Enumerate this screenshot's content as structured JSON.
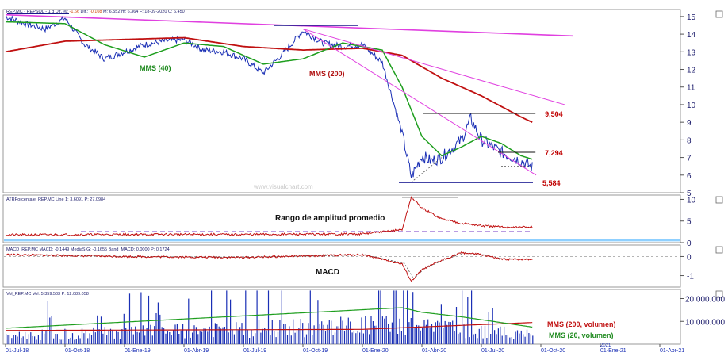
{
  "header": {
    "symbol": "REP.MC - REPSOL - 1 d",
    "diff_label": "Dif. %",
    "diff_value": "-1,66",
    "dif_label": "Dif.",
    "dif_value": "-0,108",
    "stats": "M: 6,552  m: 6,364  F: 18-09-2020  C: 6,450"
  },
  "indicator_headers": {
    "atr": "ATRPorcentaje_REP.MC  Line 1: 3,6091  P: 27,0984",
    "macd": "MACD_REP.MC  MACD: -0,1449  MediaSIG: -0,1655  Band_MACD: 0,0000  P: 0,1724",
    "vol": "Vol_REP.MC  Vol: 5.359.503  P: 12.089.058"
  },
  "annotations": {
    "mms40": "MMS (40)",
    "mms200": "MMS (200)",
    "rango": "Rango de amplitud promedio",
    "macd": "MACD",
    "vol200": "MMS (200, volumen)",
    "vol20": "MMS (20, volumen)",
    "watermark": "www.visualchart.com"
  },
  "levels": [
    {
      "value": 9.504,
      "label": "9,504",
      "color": "#c00000"
    },
    {
      "value": 7.294,
      "label": "7,294",
      "color": "#c00000"
    },
    {
      "value": 5.584,
      "label": "5,584",
      "color": "#c00000"
    }
  ],
  "colors": {
    "price": "#1a2fb5",
    "mms40": "#1e9e1e",
    "mms200": "#c01010",
    "trend": "#e040e0",
    "level_line": "#1a1a8c",
    "atr_band": "#8fd0ff"
  },
  "chart_data": [
    {
      "type": "line",
      "panel": "price",
      "x_ticks": [
        "01-Jul-18",
        "01-Oct-18",
        "01-Ene-19",
        "01-Abr-19",
        "01-Jul-19",
        "01-Oct-19",
        "01-Ene-20",
        "01-Abr-20",
        "01-Jul-20",
        "01-Oct-20",
        "01-Ene-21",
        "01-Abr-21"
      ],
      "y_ticks": [
        5,
        6,
        7,
        8,
        9,
        10,
        11,
        12,
        13,
        14,
        15
      ],
      "ylim": [
        5,
        15.4
      ],
      "series": [
        {
          "name": "REP.MC",
          "x": [
            "01-Jul-18",
            "01-Ago-18",
            "01-Sep-18",
            "01-Oct-18",
            "01-Nov-18",
            "01-Dic-18",
            "01-Ene-19",
            "01-Feb-19",
            "01-Mar-19",
            "01-Abr-19",
            "01-May-19",
            "01-Jun-19",
            "01-Jul-19",
            "01-Ago-19",
            "01-Sep-19",
            "01-Oct-19",
            "01-Nov-19",
            "01-Dic-19",
            "01-Ene-20",
            "01-Feb-20",
            "01-Mar-20",
            "15-Mar-20",
            "01-Abr-20",
            "15-Abr-20",
            "01-May-20",
            "01-Jun-20",
            "15-Jun-20",
            "01-Jul-20",
            "01-Ago-20",
            "01-Sep-20",
            "18-Sep-20"
          ],
          "values": [
            15.0,
            14.6,
            14.3,
            14.9,
            13.4,
            12.6,
            13.0,
            13.4,
            13.6,
            13.7,
            13.1,
            13.0,
            12.6,
            11.8,
            12.9,
            14.2,
            13.5,
            13.3,
            13.4,
            12.4,
            8.4,
            5.9,
            7.1,
            6.8,
            7.0,
            8.0,
            9.2,
            8.0,
            7.3,
            6.8,
            6.45
          ]
        },
        {
          "name": "MMS (40)",
          "x": [
            "01-Jul-18",
            "01-Oct-18",
            "01-Dic-18",
            "01-Feb-19",
            "01-Abr-19",
            "01-Jun-19",
            "01-Ago-19",
            "01-Oct-19",
            "01-Dic-19",
            "01-Feb-20",
            "01-Mar-20",
            "01-Abr-20",
            "01-May-20",
            "01-Jun-20",
            "01-Jul-20",
            "01-Ago-20",
            "01-Sep-20",
            "18-Sep-20"
          ],
          "values": [
            14.7,
            14.6,
            13.4,
            12.7,
            13.5,
            13.3,
            12.3,
            12.6,
            13.5,
            13.1,
            11.0,
            8.2,
            7.1,
            7.6,
            8.2,
            7.8,
            7.1,
            6.9
          ]
        },
        {
          "name": "MMS (200)",
          "x": [
            "01-Jul-18",
            "01-Oct-18",
            "01-Ene-19",
            "01-Abr-19",
            "01-Jul-19",
            "01-Oct-19",
            "01-Ene-20",
            "01-Mar-20",
            "01-May-20",
            "01-Jul-20",
            "01-Sep-20",
            "18-Sep-20"
          ],
          "values": [
            13.0,
            13.6,
            13.7,
            13.8,
            13.3,
            13.1,
            13.2,
            12.8,
            11.5,
            10.5,
            9.3,
            9.0
          ]
        }
      ],
      "levels": [
        9.504,
        7.294,
        5.584
      ]
    },
    {
      "type": "line",
      "panel": "atr",
      "title": "Rango de amplitud promedio",
      "y_ticks": [
        0,
        5,
        10
      ],
      "ylim": [
        0,
        11
      ],
      "series": [
        {
          "name": "ATRPorcentaje_REP.MC",
          "x": [
            "01-Jul-18",
            "01-Ene-19",
            "01-Jul-19",
            "01-Ene-20",
            "01-Mar-20",
            "15-Mar-20",
            "01-Abr-20",
            "01-May-20",
            "01-Jun-20",
            "01-Jul-20",
            "01-Ago-20",
            "18-Sep-20"
          ],
          "values": [
            1.8,
            1.9,
            1.9,
            2.0,
            3.0,
            10.5,
            8.0,
            5.5,
            4.5,
            3.9,
            3.6,
            3.6
          ]
        }
      ]
    },
    {
      "type": "line",
      "panel": "macd",
      "title": "MACD",
      "y_ticks": [
        -1,
        0
      ],
      "ylim": [
        -1.6,
        0.6
      ],
      "series": [
        {
          "name": "MACD",
          "x": [
            "01-Jul-18",
            "01-Ene-19",
            "01-Jul-19",
            "01-Ene-20",
            "01-Mar-20",
            "15-Mar-20",
            "01-Abr-20",
            "01-May-20",
            "01-Jun-20",
            "01-Jul-20",
            "01-Ago-20",
            "18-Sep-20"
          ],
          "values": [
            0.1,
            0.0,
            -0.05,
            0.1,
            -0.4,
            -1.3,
            -0.7,
            -0.2,
            0.2,
            0.1,
            -0.15,
            -0.14
          ]
        }
      ]
    },
    {
      "type": "bar",
      "panel": "volume",
      "y_ticks": [
        "10.000.000",
        "20.000.000"
      ],
      "ylim": [
        0,
        24000000
      ],
      "series": [
        {
          "name": "MMS (200, volumen)",
          "x": [
            "01-Jul-18",
            "01-Ene-20",
            "18-Sep-20"
          ],
          "values": [
            6000000,
            6500000,
            9500000
          ]
        },
        {
          "name": "MMS (20, volumen)",
          "x": [
            "01-Jul-18",
            "01-Mar-20",
            "01-Abr-20",
            "01-Jun-20",
            "18-Sep-20"
          ],
          "values": [
            7000000,
            16000000,
            14000000,
            12000000,
            7500000
          ]
        }
      ]
    }
  ]
}
